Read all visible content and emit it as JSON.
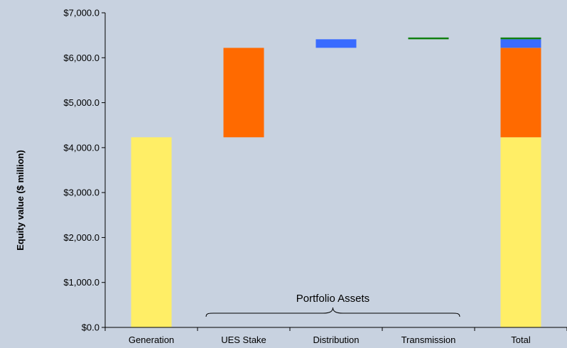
{
  "chart_data": {
    "type": "bar",
    "subtype": "waterfall",
    "categories": [
      "Generation",
      "UES Stake",
      "Distribution",
      "Transmission",
      "Total"
    ],
    "ylabel": "Equity value ($ million)",
    "ylim": [
      0,
      7000
    ],
    "yticks": [
      "$0.0",
      "$1,000.0",
      "$2,000.0",
      "$3,000.0",
      "$4,000.0",
      "$5,000.0",
      "$6,000.0",
      "$7,000.0"
    ],
    "grid": false,
    "series": [
      {
        "values": [
          4230,
          0,
          0,
          0,
          4230
        ],
        "base": [
          0,
          0,
          0,
          0,
          0
        ],
        "color": "#ffee66"
      },
      {
        "values": [
          0,
          1990,
          0,
          0,
          1990
        ],
        "base": [
          0,
          4230,
          0,
          0,
          4230
        ],
        "color": "#ff6a00"
      },
      {
        "values": [
          0,
          0,
          190,
          0,
          190
        ],
        "base": [
          0,
          0,
          6220,
          0,
          6220
        ],
        "color": "#3a6bff"
      },
      {
        "values": [
          0,
          0,
          0,
          40,
          40
        ],
        "base": [
          0,
          0,
          0,
          6410,
          6410
        ],
        "color": "#108010"
      }
    ],
    "annotation": {
      "text": "Portfolio Assets",
      "spans": [
        "UES Stake",
        "Transmission"
      ]
    }
  }
}
